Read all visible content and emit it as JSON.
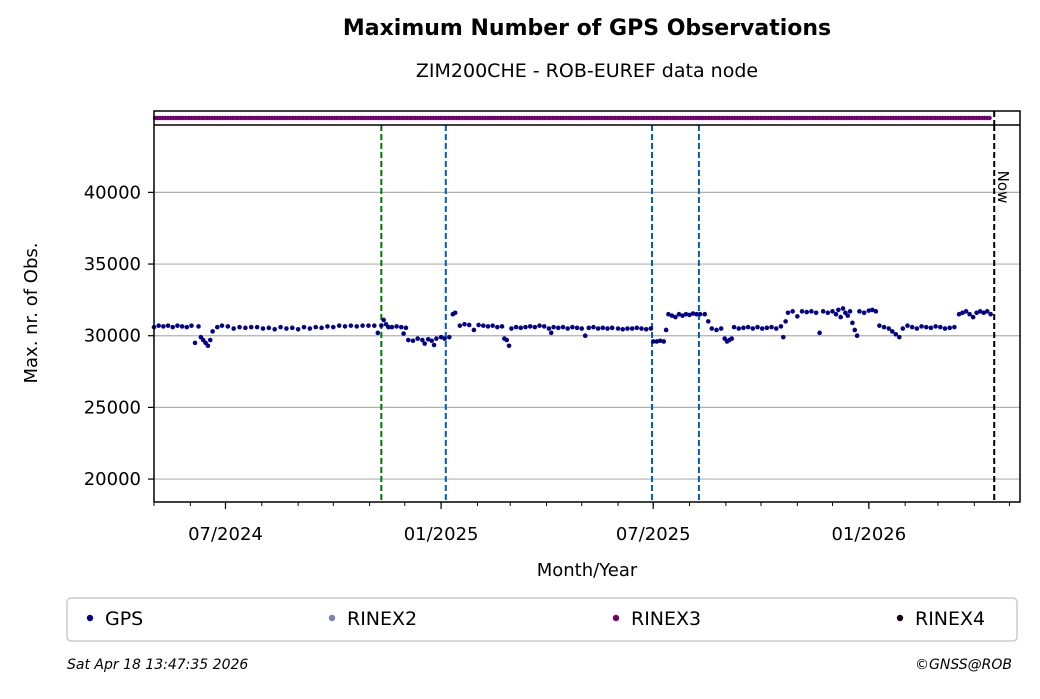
{
  "chart_data": {
    "type": "scatter",
    "title": "Maximum Number of GPS Observations",
    "subtitle": "ZIM200CHE - ROB-EUREF data node",
    "xlabel": "Month/Year",
    "ylabel": "Max. nr. of Obs.",
    "xlim": [
      "2024-05-01",
      "2026-05-10"
    ],
    "ylim": [
      18400,
      44700
    ],
    "x_ticks": [
      {
        "date": "2024-07-01",
        "label": "07/2024"
      },
      {
        "date": "2025-01-01",
        "label": "01/2025"
      },
      {
        "date": "2025-07-01",
        "label": "07/2025"
      },
      {
        "date": "2026-01-01",
        "label": "01/2026"
      }
    ],
    "y_ticks": [
      20000,
      25000,
      30000,
      35000,
      40000
    ],
    "grid": "horizontal",
    "legend_position": "bottom",
    "vlines": [
      {
        "date": "2024-11-11",
        "color": "#007500"
      },
      {
        "date": "2025-01-05",
        "color": "#005cb8"
      },
      {
        "date": "2025-06-30",
        "color": "#005cb8"
      },
      {
        "date": "2025-08-09",
        "color": "#005cb8"
      },
      {
        "date": "2026-04-18",
        "color": "#000000",
        "label": "Now"
      }
    ],
    "rinex3_strip": {
      "start": "2024-05-01",
      "end": "2026-04-15"
    },
    "series": [
      {
        "name": "GPS",
        "color": "#00008b",
        "points": [
          [
            "2024-05-01",
            30600
          ],
          [
            "2024-05-05",
            30700
          ],
          [
            "2024-05-09",
            30650
          ],
          [
            "2024-05-13",
            30700
          ],
          [
            "2024-05-17",
            30600
          ],
          [
            "2024-05-21",
            30700
          ],
          [
            "2024-05-25",
            30650
          ],
          [
            "2024-05-29",
            30600
          ],
          [
            "2024-06-02",
            30700
          ],
          [
            "2024-06-05",
            29500
          ],
          [
            "2024-06-08",
            30650
          ],
          [
            "2024-06-10",
            29900
          ],
          [
            "2024-06-12",
            29700
          ],
          [
            "2024-06-14",
            29500
          ],
          [
            "2024-06-16",
            29300
          ],
          [
            "2024-06-18",
            29700
          ],
          [
            "2024-06-20",
            30300
          ],
          [
            "2024-06-24",
            30600
          ],
          [
            "2024-06-28",
            30700
          ],
          [
            "2024-07-03",
            30650
          ],
          [
            "2024-07-08",
            30500
          ],
          [
            "2024-07-13",
            30600
          ],
          [
            "2024-07-18",
            30550
          ],
          [
            "2024-07-23",
            30600
          ],
          [
            "2024-07-28",
            30600
          ],
          [
            "2024-08-02",
            30500
          ],
          [
            "2024-08-07",
            30550
          ],
          [
            "2024-08-12",
            30450
          ],
          [
            "2024-08-17",
            30600
          ],
          [
            "2024-08-22",
            30500
          ],
          [
            "2024-08-27",
            30550
          ],
          [
            "2024-09-01",
            30450
          ],
          [
            "2024-09-06",
            30600
          ],
          [
            "2024-09-11",
            30500
          ],
          [
            "2024-09-16",
            30600
          ],
          [
            "2024-09-21",
            30550
          ],
          [
            "2024-09-26",
            30650
          ],
          [
            "2024-10-01",
            30600
          ],
          [
            "2024-10-06",
            30700
          ],
          [
            "2024-10-11",
            30650
          ],
          [
            "2024-10-16",
            30700
          ],
          [
            "2024-10-21",
            30650
          ],
          [
            "2024-10-26",
            30700
          ],
          [
            "2024-10-31",
            30700
          ],
          [
            "2024-11-05",
            30700
          ],
          [
            "2024-11-08",
            30200
          ],
          [
            "2024-11-11",
            30700
          ],
          [
            "2024-11-13",
            31100
          ],
          [
            "2024-11-15",
            30800
          ],
          [
            "2024-11-17",
            30600
          ],
          [
            "2024-11-20",
            30600
          ],
          [
            "2024-11-24",
            30650
          ],
          [
            "2024-11-28",
            30600
          ],
          [
            "2024-11-30",
            30150
          ],
          [
            "2024-12-02",
            30550
          ],
          [
            "2024-12-04",
            29700
          ],
          [
            "2024-12-08",
            29650
          ],
          [
            "2024-12-12",
            29800
          ],
          [
            "2024-12-16",
            29700
          ],
          [
            "2024-12-18",
            29450
          ],
          [
            "2024-12-21",
            29750
          ],
          [
            "2024-12-24",
            29650
          ],
          [
            "2024-12-26",
            29350
          ],
          [
            "2024-12-28",
            29800
          ],
          [
            "2025-01-01",
            29900
          ],
          [
            "2025-01-04",
            29800
          ],
          [
            "2025-01-08",
            29900
          ],
          [
            "2025-01-11",
            31500
          ],
          [
            "2025-01-13",
            31600
          ],
          [
            "2025-01-17",
            30700
          ],
          [
            "2025-01-21",
            30800
          ],
          [
            "2025-01-25",
            30750
          ],
          [
            "2025-01-29",
            30400
          ],
          [
            "2025-02-02",
            30750
          ],
          [
            "2025-02-06",
            30700
          ],
          [
            "2025-02-10",
            30650
          ],
          [
            "2025-02-14",
            30700
          ],
          [
            "2025-02-18",
            30600
          ],
          [
            "2025-02-22",
            30650
          ],
          [
            "2025-02-24",
            29800
          ],
          [
            "2025-02-26",
            29700
          ],
          [
            "2025-02-28",
            29300
          ],
          [
            "2025-03-02",
            30500
          ],
          [
            "2025-03-06",
            30600
          ],
          [
            "2025-03-10",
            30550
          ],
          [
            "2025-03-14",
            30600
          ],
          [
            "2025-03-18",
            30650
          ],
          [
            "2025-03-22",
            30600
          ],
          [
            "2025-03-26",
            30700
          ],
          [
            "2025-03-30",
            30650
          ],
          [
            "2025-04-03",
            30500
          ],
          [
            "2025-04-05",
            30200
          ],
          [
            "2025-04-07",
            30600
          ],
          [
            "2025-04-11",
            30550
          ],
          [
            "2025-04-15",
            30600
          ],
          [
            "2025-04-19",
            30500
          ],
          [
            "2025-04-23",
            30600
          ],
          [
            "2025-04-27",
            30550
          ],
          [
            "2025-05-01",
            30500
          ],
          [
            "2025-05-04",
            30000
          ],
          [
            "2025-05-07",
            30550
          ],
          [
            "2025-05-11",
            30600
          ],
          [
            "2025-05-15",
            30500
          ],
          [
            "2025-05-19",
            30550
          ],
          [
            "2025-05-23",
            30500
          ],
          [
            "2025-05-27",
            30550
          ],
          [
            "2025-06-01",
            30500
          ],
          [
            "2025-06-05",
            30450
          ],
          [
            "2025-06-09",
            30500
          ],
          [
            "2025-06-13",
            30500
          ],
          [
            "2025-06-17",
            30550
          ],
          [
            "2025-06-21",
            30500
          ],
          [
            "2025-06-25",
            30450
          ],
          [
            "2025-06-29",
            30500
          ],
          [
            "2025-07-01",
            29600
          ],
          [
            "2025-07-04",
            29600
          ],
          [
            "2025-07-07",
            29650
          ],
          [
            "2025-07-10",
            29600
          ],
          [
            "2025-07-12",
            30400
          ],
          [
            "2025-07-14",
            31500
          ],
          [
            "2025-07-17",
            31400
          ],
          [
            "2025-07-20",
            31300
          ],
          [
            "2025-07-23",
            31500
          ],
          [
            "2025-07-26",
            31400
          ],
          [
            "2025-07-29",
            31500
          ],
          [
            "2025-08-01",
            31450
          ],
          [
            "2025-08-04",
            31550
          ],
          [
            "2025-08-07",
            31500
          ],
          [
            "2025-08-10",
            31500
          ],
          [
            "2025-08-14",
            31500
          ],
          [
            "2025-08-17",
            31000
          ],
          [
            "2025-08-20",
            30500
          ],
          [
            "2025-08-24",
            30400
          ],
          [
            "2025-08-28",
            30500
          ],
          [
            "2025-08-31",
            29800
          ],
          [
            "2025-09-02",
            29600
          ],
          [
            "2025-09-04",
            29700
          ],
          [
            "2025-09-06",
            29800
          ],
          [
            "2025-09-08",
            30600
          ],
          [
            "2025-09-12",
            30500
          ],
          [
            "2025-09-16",
            30550
          ],
          [
            "2025-09-20",
            30600
          ],
          [
            "2025-09-24",
            30500
          ],
          [
            "2025-09-28",
            30600
          ],
          [
            "2025-10-02",
            30500
          ],
          [
            "2025-10-06",
            30550
          ],
          [
            "2025-10-10",
            30600
          ],
          [
            "2025-10-14",
            30500
          ],
          [
            "2025-10-18",
            30650
          ],
          [
            "2025-10-20",
            29900
          ],
          [
            "2025-10-22",
            31000
          ],
          [
            "2025-10-24",
            31600
          ],
          [
            "2025-10-28",
            31700
          ],
          [
            "2025-11-01",
            31350
          ],
          [
            "2025-11-05",
            31700
          ],
          [
            "2025-11-09",
            31650
          ],
          [
            "2025-11-13",
            31700
          ],
          [
            "2025-11-17",
            31600
          ],
          [
            "2025-11-20",
            30200
          ],
          [
            "2025-11-23",
            31700
          ],
          [
            "2025-11-27",
            31600
          ],
          [
            "2025-12-01",
            31700
          ],
          [
            "2025-12-04",
            31500
          ],
          [
            "2025-12-06",
            31800
          ],
          [
            "2025-12-08",
            31300
          ],
          [
            "2025-12-10",
            31900
          ],
          [
            "2025-12-12",
            31600
          ],
          [
            "2025-12-14",
            31400
          ],
          [
            "2025-12-16",
            31700
          ],
          [
            "2025-12-18",
            30900
          ],
          [
            "2025-12-20",
            30400
          ],
          [
            "2025-12-22",
            30000
          ],
          [
            "2025-12-24",
            31700
          ],
          [
            "2025-12-28",
            31600
          ],
          [
            "2026-01-01",
            31750
          ],
          [
            "2026-01-04",
            31800
          ],
          [
            "2026-01-07",
            31700
          ],
          [
            "2026-01-10",
            30700
          ],
          [
            "2026-01-14",
            30600
          ],
          [
            "2026-01-18",
            30500
          ],
          [
            "2026-01-21",
            30300
          ],
          [
            "2026-01-24",
            30100
          ],
          [
            "2026-01-27",
            29900
          ],
          [
            "2026-01-30",
            30500
          ],
          [
            "2026-02-03",
            30700
          ],
          [
            "2026-02-07",
            30600
          ],
          [
            "2026-02-11",
            30500
          ],
          [
            "2026-02-15",
            30650
          ],
          [
            "2026-02-19",
            30600
          ],
          [
            "2026-02-23",
            30550
          ],
          [
            "2026-02-27",
            30650
          ],
          [
            "2026-03-03",
            30600
          ],
          [
            "2026-03-07",
            30500
          ],
          [
            "2026-03-11",
            30550
          ],
          [
            "2026-03-15",
            30600
          ],
          [
            "2026-03-19",
            31500
          ],
          [
            "2026-03-22",
            31600
          ],
          [
            "2026-03-25",
            31700
          ],
          [
            "2026-03-28",
            31500
          ],
          [
            "2026-03-31",
            31300
          ],
          [
            "2026-04-03",
            31600
          ],
          [
            "2026-04-06",
            31700
          ],
          [
            "2026-04-09",
            31600
          ],
          [
            "2026-04-12",
            31700
          ],
          [
            "2026-04-15",
            31500
          ]
        ]
      },
      {
        "name": "RINEX2",
        "color": "#7a7fbf"
      },
      {
        "name": "RINEX3",
        "color": "#6e006e"
      },
      {
        "name": "RINEX4",
        "color": "#1a001a"
      }
    ],
    "now_label": "Now"
  },
  "footer": {
    "timestamp": "Sat Apr 18 13:47:35 2026",
    "credit": "©GNSS@ROB"
  }
}
